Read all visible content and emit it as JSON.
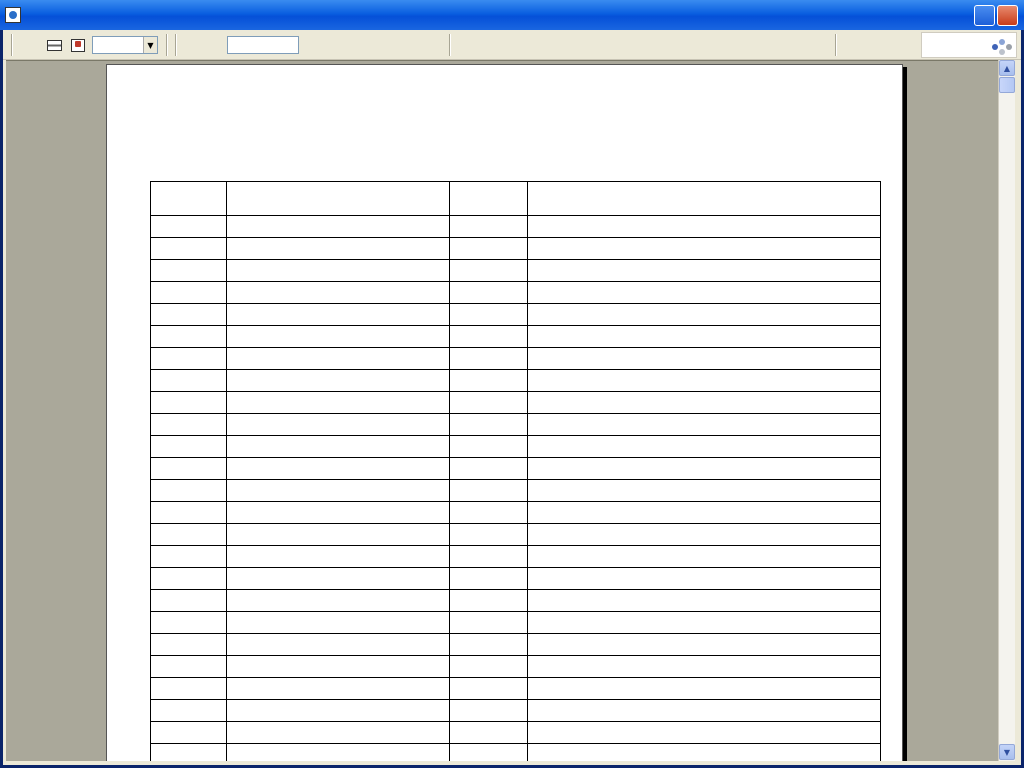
{
  "window": {
    "title": "",
    "help_label": "",
    "close_label": ""
  },
  "toolbar": {
    "close_report": "",
    "zoom_value": "",
    "page_number": "",
    "page_total_label": "",
    "nav_first": "",
    "nav_prev": "",
    "nav_next": "",
    "nav_last": "",
    "nav_stop": "",
    "find": ""
  },
  "logo": {
    "powered": "",
    "brand": ""
  },
  "report": {
    "title": "",
    "headers": {
      "code": "",
      "name": "",
      "price": "",
      "note": ""
    },
    "rows": [
      {
        "code": "",
        "name": "",
        "price": "",
        "note": ""
      },
      {
        "code": "",
        "name": "",
        "price": "",
        "note": ""
      },
      {
        "code": "",
        "name": "",
        "price": "",
        "note": ""
      },
      {
        "code": "",
        "name": "",
        "price": "",
        "note": ""
      },
      {
        "code": "",
        "name": "",
        "price": "",
        "note": ""
      },
      {
        "code": "",
        "name": "",
        "price": "",
        "note": ""
      },
      {
        "code": "",
        "name": "",
        "price": "",
        "note": ""
      },
      {
        "code": "",
        "name": "",
        "price": "",
        "note": ""
      },
      {
        "code": "",
        "name": "",
        "price": "",
        "note": ""
      },
      {
        "code": "",
        "name": "",
        "price": "",
        "note": ""
      },
      {
        "code": "",
        "name": "",
        "price": "",
        "note": ""
      },
      {
        "code": "",
        "name": "",
        "price": "",
        "note": ""
      },
      {
        "code": "",
        "name": "",
        "price": "",
        "note": ""
      },
      {
        "code": "",
        "name": "",
        "price": "",
        "note": ""
      },
      {
        "code": "",
        "name": "",
        "price": "",
        "note": ""
      },
      {
        "code": "",
        "name": "",
        "price": "",
        "note": ""
      },
      {
        "code": "",
        "name": "",
        "price": "",
        "note": ""
      },
      {
        "code": "",
        "name": "",
        "price": "",
        "note": ""
      },
      {
        "code": "",
        "name": "",
        "price": "",
        "note": ""
      },
      {
        "code": "",
        "name": "",
        "price": "",
        "note": ""
      },
      {
        "code": "",
        "name": "",
        "price": "",
        "note": ""
      },
      {
        "code": "",
        "name": "",
        "price": "",
        "note": ""
      },
      {
        "code": "",
        "name": "",
        "price": "",
        "note": ""
      },
      {
        "code": "",
        "name": "",
        "price": "",
        "note": ""
      },
      {
        "code": "",
        "name": "",
        "price": "",
        "note": ""
      }
    ]
  },
  "colors": {
    "titlebar": "#0a5fe0",
    "viewport_bg": "#aaa89a",
    "close_button": "#c83c1a"
  }
}
